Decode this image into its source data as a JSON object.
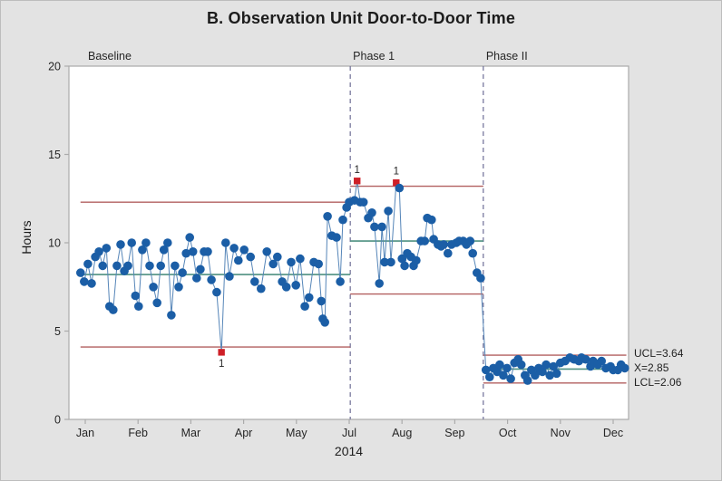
{
  "chart_data": {
    "type": "line",
    "subtype": "control-chart-individuals-staged",
    "title": "B. Observation Unit Door-to-Door Time",
    "xlabel": "2014",
    "ylabel": "Hours",
    "ylim": [
      0,
      20
    ],
    "y_ticks": [
      0,
      5,
      10,
      15,
      20
    ],
    "x_tick_labels": [
      "Jan",
      "Feb",
      "Mar",
      "Apr",
      "May",
      "Jul",
      "Aug",
      "Sep",
      "Oct",
      "Nov",
      "Dec"
    ],
    "x_unit_note": "x = month-tick index, Jan=0 ... Dec=10 (June not labeled on axis)",
    "grid": false,
    "legend": "none",
    "annotations": [
      "UCL=3.64",
      "X=2.85",
      "LCL=2.06"
    ],
    "stage_dividers_x": [
      5.02,
      7.54
    ],
    "phases": [
      {
        "label": "Baseline",
        "start": -0.09,
        "end": 5.02,
        "center": 8.2,
        "ucl": 12.3,
        "lcl": 4.1,
        "points": [
          [
            -0.09,
            8.3
          ],
          [
            -0.02,
            7.8
          ],
          [
            0.05,
            8.8
          ],
          [
            0.12,
            7.7
          ],
          [
            0.19,
            9.2
          ],
          [
            0.26,
            9.5
          ],
          [
            0.33,
            8.7
          ],
          [
            0.4,
            9.7
          ],
          [
            0.46,
            6.4
          ],
          [
            0.53,
            6.2
          ],
          [
            0.6,
            8.7
          ],
          [
            0.67,
            9.9
          ],
          [
            0.74,
            8.4
          ],
          [
            0.81,
            8.7
          ],
          [
            0.88,
            10.0
          ],
          [
            0.95,
            7.0
          ],
          [
            1.01,
            6.4
          ],
          [
            1.08,
            9.6
          ],
          [
            1.15,
            10.0
          ],
          [
            1.22,
            8.7
          ],
          [
            1.29,
            7.5
          ],
          [
            1.36,
            6.6
          ],
          [
            1.43,
            8.7
          ],
          [
            1.49,
            9.6
          ],
          [
            1.56,
            10.0
          ],
          [
            1.63,
            5.9
          ],
          [
            1.7,
            8.7
          ],
          [
            1.77,
            7.5
          ],
          [
            1.84,
            8.3
          ],
          [
            1.91,
            9.4
          ],
          [
            1.98,
            10.3
          ],
          [
            2.04,
            9.5
          ],
          [
            2.11,
            8.0
          ],
          [
            2.18,
            8.5
          ],
          [
            2.25,
            9.5
          ],
          [
            2.32,
            9.5
          ],
          [
            2.39,
            7.9
          ],
          [
            2.49,
            7.2
          ],
          [
            2.58,
            3.8
          ],
          [
            2.66,
            10.0
          ],
          [
            2.73,
            8.1
          ],
          [
            2.82,
            9.7
          ],
          [
            2.9,
            9.0
          ],
          [
            3.01,
            9.6
          ],
          [
            3.13,
            9.2
          ],
          [
            3.21,
            7.8
          ],
          [
            3.33,
            7.4
          ],
          [
            3.44,
            9.5
          ],
          [
            3.56,
            8.8
          ],
          [
            3.64,
            9.2
          ],
          [
            3.73,
            7.8
          ],
          [
            3.81,
            7.5
          ],
          [
            3.9,
            8.9
          ],
          [
            3.99,
            7.6
          ],
          [
            4.07,
            9.1
          ],
          [
            4.16,
            6.4
          ],
          [
            4.24,
            6.9
          ],
          [
            4.33,
            8.9
          ],
          [
            4.42,
            8.8
          ],
          [
            4.47,
            6.7
          ],
          [
            4.5,
            5.7
          ],
          [
            4.54,
            5.5
          ],
          [
            4.59,
            11.5
          ],
          [
            4.67,
            10.4
          ],
          [
            4.76,
            10.3
          ],
          [
            4.83,
            7.8
          ],
          [
            4.88,
            11.3
          ],
          [
            4.95,
            12.0
          ],
          [
            5.0,
            12.3
          ]
        ],
        "flagged": [
          {
            "x": 2.58,
            "y": 3.8,
            "label": "1",
            "label_side": "below"
          }
        ]
      },
      {
        "label": "Phase 1",
        "start": 5.02,
        "end": 7.54,
        "center": 10.1,
        "ucl": 13.2,
        "lcl": 7.1,
        "points": [
          [
            5.1,
            12.4
          ],
          [
            5.15,
            13.5
          ],
          [
            5.21,
            12.3
          ],
          [
            5.27,
            12.3
          ],
          [
            5.36,
            11.4
          ],
          [
            5.43,
            11.7
          ],
          [
            5.48,
            10.9
          ],
          [
            5.57,
            7.7
          ],
          [
            5.62,
            10.9
          ],
          [
            5.67,
            8.9
          ],
          [
            5.74,
            11.8
          ],
          [
            5.79,
            8.9
          ],
          [
            5.89,
            13.4
          ],
          [
            5.95,
            13.1
          ],
          [
            6.0,
            9.1
          ],
          [
            6.05,
            8.7
          ],
          [
            6.1,
            9.4
          ],
          [
            6.17,
            9.2
          ],
          [
            6.22,
            8.7
          ],
          [
            6.27,
            9.0
          ],
          [
            6.36,
            10.1
          ],
          [
            6.43,
            10.1
          ],
          [
            6.48,
            11.4
          ],
          [
            6.56,
            11.3
          ],
          [
            6.6,
            10.2
          ],
          [
            6.68,
            9.9
          ],
          [
            6.74,
            9.8
          ],
          [
            6.79,
            9.9
          ],
          [
            6.87,
            9.4
          ],
          [
            6.94,
            9.9
          ],
          [
            7.03,
            10.0
          ],
          [
            7.08,
            10.1
          ],
          [
            7.16,
            10.1
          ],
          [
            7.22,
            9.9
          ],
          [
            7.29,
            10.1
          ],
          [
            7.34,
            9.4
          ],
          [
            7.42,
            8.3
          ],
          [
            7.49,
            8.0
          ]
        ],
        "flagged": [
          {
            "x": 5.15,
            "y": 13.5,
            "label": "1",
            "label_side": "above"
          },
          {
            "x": 5.89,
            "y": 13.4,
            "label": "1",
            "label_side": "above"
          }
        ]
      },
      {
        "label": "Phase II",
        "start": 7.54,
        "end": 10.25,
        "center": 2.85,
        "ucl": 3.64,
        "lcl": 2.06,
        "points": [
          [
            7.59,
            2.8
          ],
          [
            7.66,
            2.4
          ],
          [
            7.73,
            2.9
          ],
          [
            7.8,
            2.7
          ],
          [
            7.85,
            3.1
          ],
          [
            7.92,
            2.5
          ],
          [
            7.99,
            2.9
          ],
          [
            8.06,
            2.3
          ],
          [
            8.13,
            3.2
          ],
          [
            8.2,
            3.4
          ],
          [
            8.26,
            3.1
          ],
          [
            8.33,
            2.5
          ],
          [
            8.38,
            2.2
          ],
          [
            8.45,
            2.8
          ],
          [
            8.52,
            2.5
          ],
          [
            8.59,
            2.9
          ],
          [
            8.66,
            2.7
          ],
          [
            8.73,
            3.1
          ],
          [
            8.8,
            2.5
          ],
          [
            8.87,
            3.0
          ],
          [
            8.93,
            2.6
          ],
          [
            9.0,
            3.2
          ],
          [
            9.09,
            3.3
          ],
          [
            9.18,
            3.5
          ],
          [
            9.26,
            3.4
          ],
          [
            9.35,
            3.3
          ],
          [
            9.4,
            3.5
          ],
          [
            9.48,
            3.4
          ],
          [
            9.57,
            3.0
          ],
          [
            9.62,
            3.3
          ],
          [
            9.71,
            3.1
          ],
          [
            9.78,
            3.3
          ],
          [
            9.86,
            2.9
          ],
          [
            9.95,
            3.0
          ],
          [
            10.0,
            2.8
          ],
          [
            10.09,
            2.8
          ],
          [
            10.15,
            3.1
          ],
          [
            10.22,
            2.9
          ]
        ],
        "flagged": []
      }
    ],
    "colors": {
      "background": "#e3e3e3",
      "plot_background": "#ffffff",
      "plot_border": "#ababab",
      "point_blue": "#1b5ea6",
      "connector_blue": "#5585b8",
      "center_line_teal": "#4e9181",
      "limit_line_red": "#b25f5f",
      "flag_red": "#ce1f27",
      "divider_purple": "#6e6e96",
      "text_dark": "#262626"
    }
  }
}
